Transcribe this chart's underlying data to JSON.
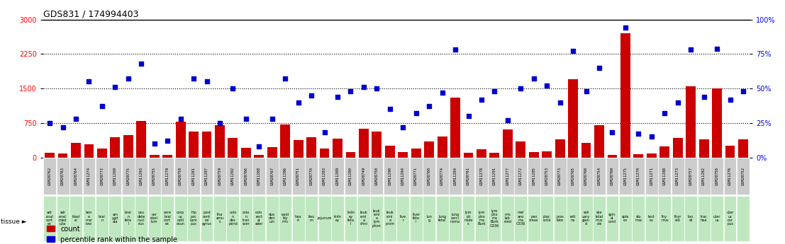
{
  "title": "GDS831 / 174994403",
  "samples": [
    "GSM28762",
    "GSM28763",
    "GSM28764",
    "GSM11274",
    "GSM28772",
    "GSM11269",
    "GSM28775",
    "GSM11293",
    "GSM28755",
    "GSM11279",
    "GSM28758",
    "GSM11281",
    "GSM11287",
    "GSM28759",
    "GSM11292",
    "GSM28766",
    "GSM11268",
    "GSM28767",
    "GSM11286",
    "GSM28751",
    "GSM28770",
    "GSM11283",
    "GSM11289",
    "GSM11280",
    "GSM28749",
    "GSM28750",
    "GSM11290",
    "GSM11294",
    "GSM28771",
    "GSM28760",
    "GSM28774",
    "GSM11284",
    "GSM28761",
    "GSM11278",
    "GSM11291",
    "GSM11277",
    "GSM11272",
    "GSM11285",
    "GSM28753",
    "GSM28773",
    "GSM28765",
    "GSM28768",
    "GSM28754",
    "GSM28769",
    "GSM11275",
    "GSM11270",
    "GSM11271",
    "GSM11288",
    "GSM11273",
    "GSM28757",
    "GSM11282",
    "GSM28756",
    "GSM11276",
    "GSM28752"
  ],
  "tissues": [
    "adr\nenal\ncort\nex",
    "adr\nenal\nmed\nulla",
    "blad\ner",
    "bon\ne\nmar\nrow",
    "brai\nn",
    "am\nygd\nala",
    "brai\nn\nfeta\nl",
    "cau\ndate\nnucl\neus",
    "cer\nebel\nlum",
    "cere\nbral\ncort\nex",
    "corp\nus\ncalli\nosun",
    "hip\npoc\ncam\npus",
    "post\ncent\nral\ngyrus",
    "tha\namu\ns",
    "colo\nn\ndes\npend",
    "colo\nn\ntran\nsver",
    "colo\nrect\nal\nader",
    "duo\nden\num",
    "epid\nidy\nmis",
    "hea\nrt",
    "ileu\nm",
    "jejunum",
    "kidn\ney",
    "kidn\ney\nfeta\nl",
    "leuk\nemi\na\nchro",
    "leuk\nemi\na\nlym\nphon",
    "leuk\nemi\na\nprom",
    "live\nr",
    "liver\nfeta\ni",
    "lun\ng",
    "lung\nfetal",
    "lung\ncarci\nnoma",
    "lym\nph\nnode\ns",
    "lym\npho\nma\nBurk",
    "lym\npho\nma\nBurk\nG336",
    "mis\nlab\neled",
    "mel\nano\nma\nG336",
    "pan\ncreas",
    "plac\nenta",
    "pros\ntate",
    "reti\nna",
    "sali\nvary\nglan\nd",
    "ske\nletal\nmus\ncle",
    "spin\nal\ncord",
    "sple\nen",
    "sto\nmac",
    "test\nes",
    "thy\nmus",
    "thyr\noid",
    "ton\nsil",
    "trac\nhea",
    "uter\nus",
    "uter\nus\ncor\npus",
    ""
  ],
  "counts": [
    100,
    90,
    310,
    290,
    190,
    440,
    490,
    800,
    60,
    50,
    780,
    560,
    560,
    700,
    430,
    210,
    60,
    230,
    720,
    380,
    440,
    200,
    410,
    110,
    620,
    560,
    250,
    120,
    200,
    350,
    450,
    1300,
    100,
    170,
    100,
    610,
    340,
    120,
    130,
    400,
    1700,
    320,
    700,
    60,
    2700,
    70,
    80,
    240,
    420,
    1550,
    390,
    1500,
    260,
    400
  ],
  "percentiles": [
    25,
    22,
    28,
    55,
    37,
    51,
    57,
    68,
    10,
    12,
    28,
    57,
    55,
    25,
    50,
    28,
    8,
    28,
    57,
    40,
    45,
    18,
    44,
    48,
    51,
    50,
    35,
    22,
    32,
    37,
    47,
    78,
    30,
    42,
    48,
    27,
    50,
    57,
    52,
    40,
    77,
    48,
    65,
    18,
    94,
    17,
    15,
    32,
    40,
    78,
    44,
    79,
    42,
    48
  ],
  "bar_color": "#cc0000",
  "dot_color": "#0000cc",
  "yticks_left": [
    0,
    750,
    1500,
    2250,
    3000
  ],
  "yticks_right": [
    0,
    25,
    50,
    75,
    100
  ],
  "hlines": [
    750,
    1500,
    2250
  ],
  "tissue_bg": "#b8e8b8",
  "sample_bg": "#c8c8c8",
  "sample_bg_alt": "#d8d8d8"
}
